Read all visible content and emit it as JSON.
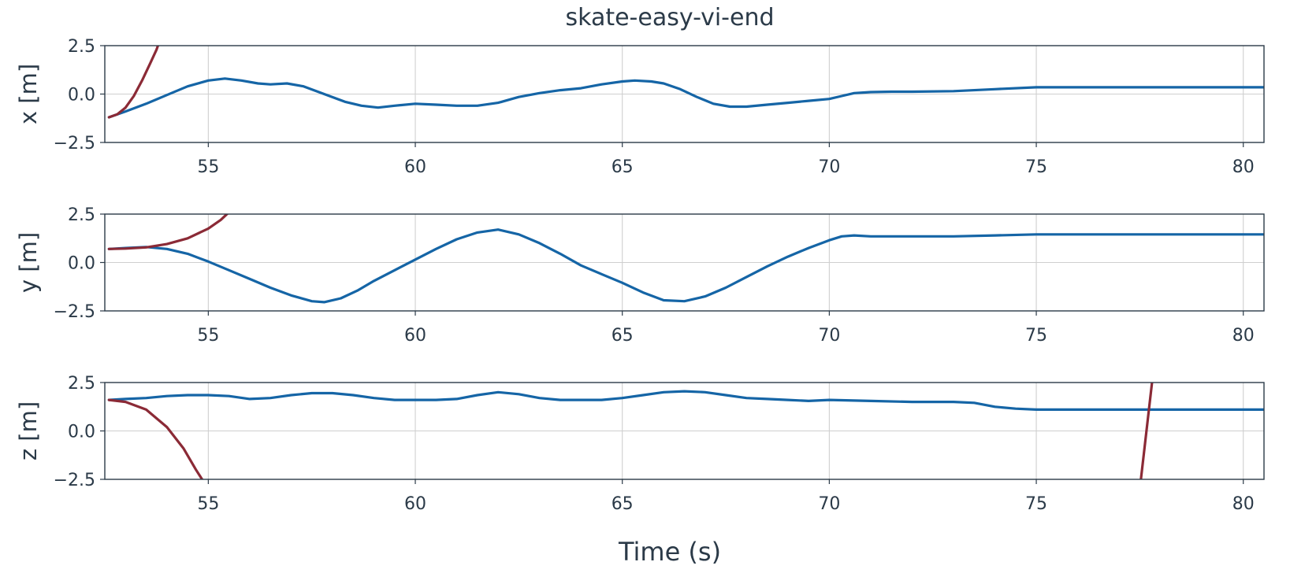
{
  "chart_data": {
    "type": "line",
    "title": "skate-easy-vi-end",
    "xlabel": "Time (s)",
    "xlim": [
      52.5,
      80.5
    ],
    "xticks": [
      55,
      60,
      65,
      70,
      75,
      80
    ],
    "xtick_labels": [
      "55",
      "60",
      "65",
      "70",
      "75",
      "80"
    ],
    "grid": true,
    "colors": {
      "blue": "#1565a6",
      "red": "#8b2a36",
      "axis": "#2b3a48",
      "grid": "#cfcfcf"
    },
    "subplots": [
      {
        "ylabel": "x [m]",
        "ylim": [
          -2.5,
          2.5
        ],
        "yticks": [
          -2.5,
          0.0,
          2.5
        ],
        "ytick_labels": [
          "−2.5",
          "0.0",
          "2.5"
        ],
        "series": [
          {
            "color": "#1565a6",
            "x": [
              52.6,
              53.0,
              53.5,
              54.0,
              54.5,
              55.0,
              55.4,
              55.8,
              56.2,
              56.5,
              56.9,
              57.3,
              57.8,
              58.3,
              58.7,
              59.1,
              59.5,
              60.0,
              60.5,
              61.0,
              61.5,
              62.0,
              62.5,
              63.0,
              63.5,
              64.0,
              64.5,
              65.0,
              65.3,
              65.7,
              66.0,
              66.4,
              66.8,
              67.2,
              67.6,
              68.0,
              68.5,
              69.0,
              69.5,
              70.0,
              70.3,
              70.6,
              71.0,
              71.5,
              72.0,
              73.0,
              74.0,
              75.0,
              76.0,
              77.0,
              78.0,
              79.0,
              80.5
            ],
            "y": [
              -1.2,
              -0.9,
              -0.5,
              -0.05,
              0.4,
              0.7,
              0.8,
              0.7,
              0.55,
              0.5,
              0.55,
              0.4,
              0.0,
              -0.4,
              -0.6,
              -0.7,
              -0.6,
              -0.5,
              -0.55,
              -0.6,
              -0.6,
              -0.45,
              -0.15,
              0.05,
              0.2,
              0.3,
              0.5,
              0.65,
              0.7,
              0.65,
              0.55,
              0.25,
              -0.15,
              -0.5,
              -0.65,
              -0.65,
              -0.55,
              -0.45,
              -0.35,
              -0.25,
              -0.1,
              0.05,
              0.1,
              0.12,
              0.12,
              0.15,
              0.25,
              0.35,
              0.35,
              0.35,
              0.35,
              0.35,
              0.35
            ]
          },
          {
            "color": "#8b2a36",
            "x": [
              52.6,
              52.8,
              53.0,
              53.2,
              53.4,
              53.6,
              53.75,
              53.9
            ],
            "y": [
              -1.2,
              -1.05,
              -0.7,
              -0.1,
              0.7,
              1.6,
              2.3,
              3.2
            ]
          }
        ]
      },
      {
        "ylabel": "y [m]",
        "ylim": [
          -2.5,
          2.5
        ],
        "yticks": [
          -2.5,
          0.0,
          2.5
        ],
        "ytick_labels": [
          "−2.5",
          "0.0",
          "2.5"
        ],
        "series": [
          {
            "color": "#1565a6",
            "x": [
              52.6,
              53.0,
              53.5,
              54.0,
              54.5,
              55.0,
              55.5,
              56.0,
              56.5,
              57.0,
              57.5,
              57.8,
              58.2,
              58.6,
              59.0,
              59.5,
              60.0,
              60.5,
              61.0,
              61.5,
              62.0,
              62.5,
              63.0,
              63.5,
              64.0,
              64.5,
              65.0,
              65.5,
              66.0,
              66.5,
              67.0,
              67.5,
              68.0,
              68.5,
              69.0,
              69.5,
              70.0,
              70.3,
              70.6,
              71.0,
              72.0,
              73.0,
              74.0,
              75.0,
              76.0,
              77.0,
              78.0,
              79.0,
              80.5
            ],
            "y": [
              0.7,
              0.75,
              0.8,
              0.7,
              0.45,
              0.05,
              -0.4,
              -0.85,
              -1.3,
              -1.7,
              -2.0,
              -2.05,
              -1.85,
              -1.45,
              -0.95,
              -0.4,
              0.15,
              0.7,
              1.2,
              1.55,
              1.7,
              1.45,
              1.0,
              0.45,
              -0.15,
              -0.6,
              -1.05,
              -1.55,
              -1.95,
              -2.0,
              -1.75,
              -1.3,
              -0.75,
              -0.2,
              0.3,
              0.75,
              1.15,
              1.35,
              1.4,
              1.35,
              1.35,
              1.35,
              1.4,
              1.45,
              1.45,
              1.45,
              1.45,
              1.45,
              1.45
            ]
          },
          {
            "color": "#8b2a36",
            "x": [
              52.6,
              53.0,
              53.5,
              54.0,
              54.5,
              55.0,
              55.3,
              55.6
            ],
            "y": [
              0.7,
              0.72,
              0.78,
              0.95,
              1.25,
              1.75,
              2.2,
              2.8
            ]
          }
        ]
      },
      {
        "ylabel": "z [m]",
        "ylim": [
          -2.5,
          2.5
        ],
        "yticks": [
          -2.5,
          0.0,
          2.5
        ],
        "ytick_labels": [
          "−2.5",
          "0.0",
          "2.5"
        ],
        "series": [
          {
            "color": "#1565a6",
            "x": [
              52.6,
              53.0,
              53.5,
              54.0,
              54.5,
              55.0,
              55.5,
              56.0,
              56.5,
              57.0,
              57.5,
              58.0,
              58.5,
              59.0,
              59.5,
              60.0,
              60.5,
              61.0,
              61.5,
              62.0,
              62.5,
              63.0,
              63.5,
              64.0,
              64.5,
              65.0,
              65.5,
              66.0,
              66.5,
              67.0,
              67.5,
              68.0,
              68.5,
              69.0,
              69.5,
              70.0,
              71.0,
              72.0,
              73.0,
              73.5,
              74.0,
              74.5,
              75.0,
              76.0,
              77.0,
              78.0,
              79.0,
              80.5
            ],
            "y": [
              1.6,
              1.65,
              1.7,
              1.8,
              1.85,
              1.85,
              1.8,
              1.65,
              1.7,
              1.85,
              1.95,
              1.95,
              1.85,
              1.7,
              1.6,
              1.6,
              1.6,
              1.65,
              1.85,
              2.0,
              1.9,
              1.7,
              1.6,
              1.6,
              1.6,
              1.7,
              1.85,
              2.0,
              2.05,
              2.0,
              1.85,
              1.7,
              1.65,
              1.6,
              1.55,
              1.6,
              1.55,
              1.5,
              1.5,
              1.45,
              1.25,
              1.15,
              1.1,
              1.1,
              1.1,
              1.1,
              1.1,
              1.1
            ]
          },
          {
            "color": "#8b2a36",
            "x": [
              52.6,
              53.0,
              53.5,
              54.0,
              54.4,
              54.7,
              55.0
            ],
            "y": [
              1.6,
              1.5,
              1.1,
              0.2,
              -0.9,
              -2.0,
              -3.0
            ]
          },
          {
            "color": "#8b2a36",
            "x": [
              77.5,
              77.8,
              78.1
            ],
            "y": [
              -3.0,
              2.6,
              4.0
            ]
          }
        ]
      }
    ]
  }
}
